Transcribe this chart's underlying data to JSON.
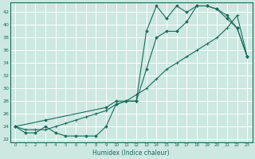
{
  "xlabel": "Humidex (Indice chaleur)",
  "bg_color": "#cce8e0",
  "grid_color": "#ffffff",
  "line_color": "#1a6b5a",
  "xlim": [
    -0.5,
    23.5
  ],
  "ylim": [
    21.5,
    43.5
  ],
  "yticks": [
    22,
    24,
    26,
    28,
    30,
    32,
    34,
    36,
    38,
    40,
    42
  ],
  "xticks": [
    0,
    1,
    2,
    3,
    4,
    5,
    6,
    7,
    8,
    9,
    10,
    11,
    12,
    13,
    14,
    15,
    16,
    17,
    18,
    19,
    20,
    21,
    22,
    23
  ],
  "line1_x": [
    0,
    1,
    2,
    3,
    4,
    5,
    6,
    7,
    8,
    9,
    10,
    11,
    12,
    13,
    14,
    15,
    16,
    17,
    18,
    19,
    20,
    21,
    22,
    23
  ],
  "line1_y": [
    24,
    23,
    23,
    24,
    23,
    22.5,
    22.5,
    22.5,
    22.5,
    24,
    27.5,
    28,
    28,
    39,
    43,
    41,
    43,
    42,
    43,
    43,
    42.5,
    41,
    39.5,
    35
  ],
  "line2_x": [
    0,
    1,
    2,
    3,
    4,
    5,
    6,
    7,
    8,
    9,
    10,
    11,
    12,
    13,
    14,
    15,
    16,
    17,
    18,
    19,
    20,
    21,
    22,
    23
  ],
  "line2_y": [
    24,
    23.5,
    23.5,
    23.5,
    24,
    24.5,
    25,
    25.5,
    26,
    26.5,
    27.5,
    28,
    29,
    30,
    31.5,
    33,
    34,
    35,
    36,
    37,
    38,
    39.5,
    41.5,
    35
  ],
  "line3_x": [
    0,
    3,
    9,
    10,
    11,
    12,
    13,
    14,
    15,
    16,
    17,
    18,
    19,
    20,
    21,
    22,
    23
  ],
  "line3_y": [
    24,
    25,
    27,
    28,
    28,
    28,
    33,
    38,
    39,
    39,
    40.5,
    43,
    43,
    42.5,
    41.5,
    39.5,
    35
  ]
}
